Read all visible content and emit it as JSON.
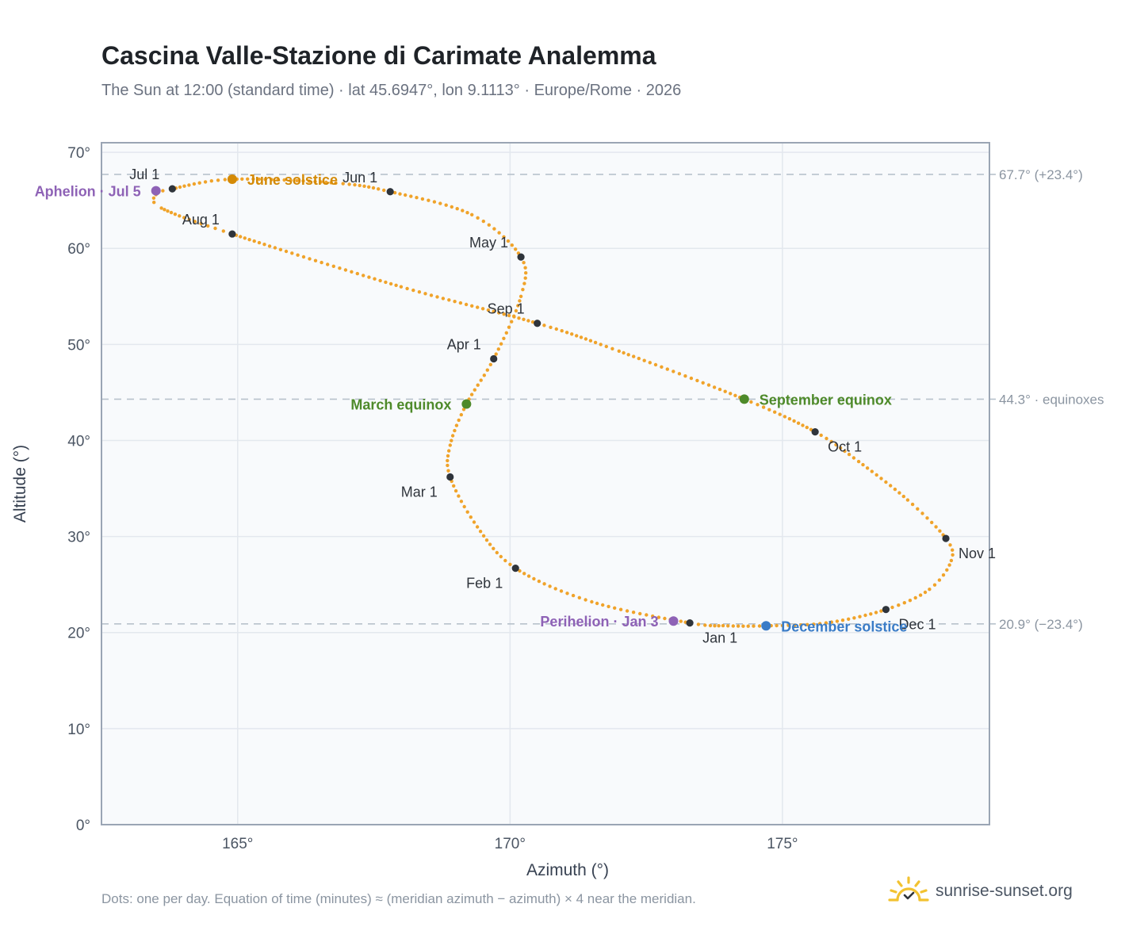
{
  "title": "Cascina Valle-Stazione di Carimate Analemma",
  "subtitle": "The Sun at 12:00 (standard time) · lat 45.6947°, lon 9.1113° · Europe/Rome · 2026",
  "footnote": "Dots: one per day. Equation of time (minutes) ≈ (meridian azimuth − azimuth) × 4 near the meridian.",
  "brand": "sunrise-sunset.org",
  "chart_data": {
    "type": "scatter",
    "xlabel": "Azimuth (°)",
    "ylabel": "Altitude (°)",
    "xlim": [
      162.5,
      178.8
    ],
    "ylim": [
      0,
      71
    ],
    "xticks": [
      165,
      170,
      175
    ],
    "xtick_labels": [
      "165°",
      "170°",
      "175°"
    ],
    "yticks": [
      0,
      10,
      20,
      30,
      40,
      50,
      60,
      70
    ],
    "ytick_labels": [
      "0°",
      "10°",
      "20°",
      "30°",
      "40°",
      "50°",
      "60°",
      "70°"
    ],
    "grid": true,
    "reference_lines": [
      {
        "y": 67.7,
        "label": "67.7° (+23.4°)"
      },
      {
        "y": 44.3,
        "label": "44.3° · equinoxes"
      },
      {
        "y": 20.9,
        "label": "20.9° (−23.4°)"
      }
    ],
    "path_anchors": [
      {
        "az": 173.3,
        "alt": 21.0
      },
      {
        "az": 174.0,
        "alt": 20.7
      },
      {
        "az": 174.7,
        "alt": 20.7
      },
      {
        "az": 175.8,
        "alt": 21.0
      },
      {
        "az": 176.9,
        "alt": 22.4
      },
      {
        "az": 177.7,
        "alt": 24.5
      },
      {
        "az": 178.1,
        "alt": 27.5
      },
      {
        "az": 178.0,
        "alt": 29.8
      },
      {
        "az": 177.3,
        "alt": 33.8
      },
      {
        "az": 176.4,
        "alt": 37.8
      },
      {
        "az": 175.6,
        "alt": 40.9
      },
      {
        "az": 174.3,
        "alt": 44.3
      },
      {
        "az": 172.0,
        "alt": 49.3
      },
      {
        "az": 170.5,
        "alt": 52.2
      },
      {
        "az": 168.0,
        "alt": 56.0
      },
      {
        "az": 164.9,
        "alt": 61.5
      },
      {
        "az": 163.6,
        "alt": 64.2
      },
      {
        "az": 163.5,
        "alt": 65.6
      },
      {
        "az": 163.8,
        "alt": 66.2
      },
      {
        "az": 164.9,
        "alt": 67.2
      },
      {
        "az": 166.8,
        "alt": 66.8
      },
      {
        "az": 167.8,
        "alt": 65.9
      },
      {
        "az": 169.3,
        "alt": 63.5
      },
      {
        "az": 170.2,
        "alt": 59.1
      },
      {
        "az": 170.2,
        "alt": 55.0
      },
      {
        "az": 169.7,
        "alt": 48.5
      },
      {
        "az": 169.2,
        "alt": 43.8
      },
      {
        "az": 168.9,
        "alt": 39.5
      },
      {
        "az": 168.9,
        "alt": 36.2
      },
      {
        "az": 169.4,
        "alt": 31.0
      },
      {
        "az": 170.1,
        "alt": 26.7
      },
      {
        "az": 171.5,
        "alt": 23.2
      },
      {
        "az": 173.3,
        "alt": 21.0
      }
    ],
    "months": [
      {
        "label": "Jan 1",
        "az": 173.3,
        "alt": 21.0,
        "pos": "below-right"
      },
      {
        "label": "Feb 1",
        "az": 170.1,
        "alt": 26.7,
        "pos": "below-left"
      },
      {
        "label": "Mar 1",
        "az": 168.9,
        "alt": 36.2,
        "pos": "below-left"
      },
      {
        "label": "Apr 1",
        "az": 169.7,
        "alt": 48.5,
        "pos": "above-left"
      },
      {
        "label": "May 1",
        "az": 170.2,
        "alt": 59.1,
        "pos": "above-left"
      },
      {
        "label": "Jun 1",
        "az": 167.8,
        "alt": 65.9,
        "pos": "above-left"
      },
      {
        "label": "Jul 1",
        "az": 163.8,
        "alt": 66.2,
        "pos": "above-left"
      },
      {
        "label": "Aug 1",
        "az": 164.9,
        "alt": 61.5,
        "pos": "above-left"
      },
      {
        "label": "Sep 1",
        "az": 170.5,
        "alt": 52.2,
        "pos": "above-left"
      },
      {
        "label": "Oct 1",
        "az": 175.6,
        "alt": 40.9,
        "pos": "below-right"
      },
      {
        "label": "Nov 1",
        "az": 178.0,
        "alt": 29.8,
        "pos": "below-right"
      },
      {
        "label": "Dec 1",
        "az": 176.9,
        "alt": 22.4,
        "pos": "below-right"
      }
    ],
    "events": [
      {
        "label": "June solstice",
        "az": 164.9,
        "alt": 67.2,
        "color": "#d48a06",
        "side": "right"
      },
      {
        "label": "September equinox",
        "az": 174.3,
        "alt": 44.3,
        "color": "#4e8a2a",
        "side": "right"
      },
      {
        "label": "December solstice",
        "az": 174.7,
        "alt": 20.7,
        "color": "#3a7cc7",
        "side": "right"
      },
      {
        "label": "March equinox",
        "az": 169.2,
        "alt": 43.8,
        "color": "#4e8a2a",
        "side": "left"
      },
      {
        "label": "Aphelion · Jul 5",
        "az": 163.5,
        "alt": 66.0,
        "color": "#8e62b6",
        "side": "left"
      },
      {
        "label": "Perihelion · Jan 3",
        "az": 173.0,
        "alt": 21.2,
        "color": "#8e62b6",
        "side": "left"
      }
    ],
    "colors": {
      "path": "#f0a32a",
      "month_dot": "#2f343b",
      "grid": "#e3e8ee",
      "plot_bg": "#f8fafc",
      "axis": "#9aa5b4",
      "reference": "#b8c2cc"
    }
  }
}
